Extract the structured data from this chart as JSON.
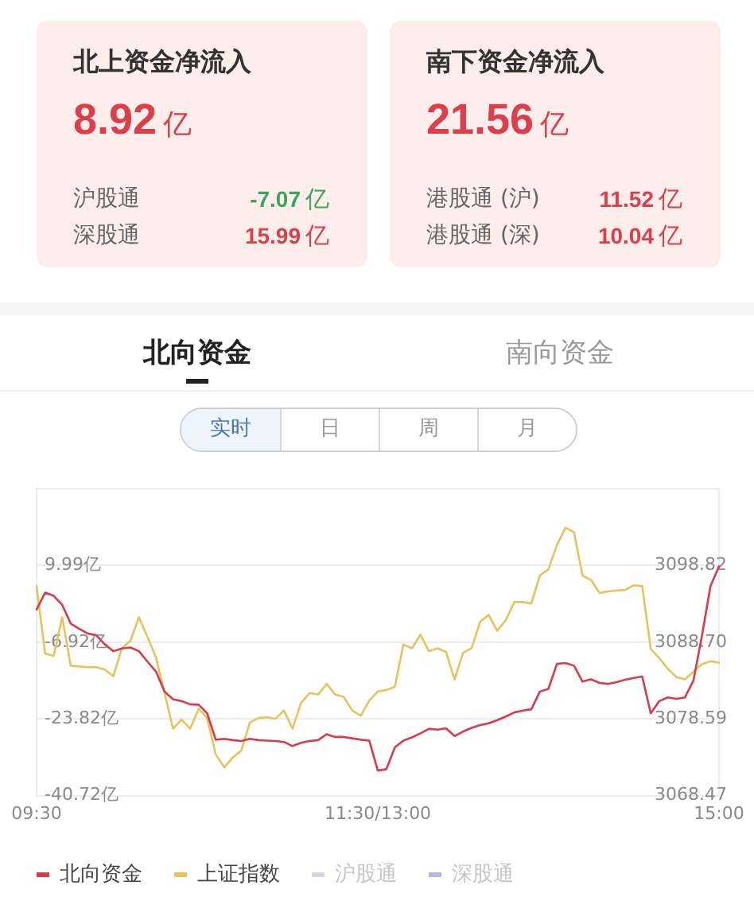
{
  "chart_data": [
    {
      "type": "other",
      "title": "北上资金净流入",
      "categories": [
        null,
        "沪股通",
        "深股通"
      ],
      "values": [
        8.92,
        -7.07,
        15.99
      ],
      "ylabel": "亿",
      "data_labels": true
    },
    {
      "type": "other",
      "title": "南下资金净流入",
      "categories": [
        null,
        "港股通 (沪)",
        "港股通 (深)"
      ],
      "values": [
        21.56,
        11.52,
        10.04
      ],
      "ylabel": "亿",
      "data_labels": true
    },
    {
      "type": "other",
      "annotations": [
        "北向资金",
        "南向资金"
      ]
    },
    {
      "type": "other",
      "annotations": [
        "实时",
        "日",
        "周",
        "月"
      ]
    },
    {
      "type": "line",
      "categories": [
        "09:30",
        null,
        null,
        null,
        null,
        null,
        null,
        null,
        null,
        null,
        null,
        null,
        null,
        null,
        null,
        null,
        null,
        null,
        null,
        null,
        null,
        null,
        null,
        null,
        null,
        null,
        null,
        null,
        null,
        null,
        null,
        null,
        null,
        null,
        null,
        null,
        null,
        null,
        null,
        null,
        "11:30/13:00",
        null,
        null,
        null,
        null,
        null,
        null,
        null,
        null,
        null,
        null,
        null,
        null,
        null,
        null,
        null,
        null,
        null,
        null,
        null,
        null,
        null,
        null,
        null,
        null,
        null,
        null,
        null,
        null,
        null,
        null,
        null,
        null,
        null,
        null,
        null,
        null,
        null,
        null,
        null,
        "15:00"
      ],
      "series": [
        {
          "name": "北向资金",
          "color": "#d63c4c",
          "values": [
            0.3,
            4.0,
            3.3,
            1.3,
            -2.8,
            -4.0,
            -5.0,
            -5.4,
            -7.4,
            -8.9,
            -8.3,
            -8.1,
            -8.9,
            -11.2,
            -13.4,
            -17.8,
            -19.5,
            -19.9,
            -20.6,
            -20.7,
            -22.6,
            -28.4,
            -28.2,
            -28.5,
            -28.7,
            -28.2,
            -28.5,
            -28.6,
            -28.7,
            -28.9,
            -29.8,
            -29.1,
            -28.7,
            -28.5,
            -27.2,
            -27.8,
            -27.8,
            -28.1,
            -28.4,
            -28.6,
            -35.2,
            -34.9,
            -30.1,
            -28.6,
            -27.9,
            -27.0,
            -26.0,
            -26.2,
            -25.9,
            -27.6,
            -26.6,
            -25.8,
            -25.2,
            -24.8,
            -24.1,
            -23.3,
            -22.4,
            -22.0,
            -21.7,
            -17.8,
            -17.2,
            -11.7,
            -11.5,
            -12.1,
            -15.6,
            -15.1,
            -15.9,
            -16.1,
            -15.7,
            -15.2,
            -14.8,
            -14.5,
            -22.6,
            -19.9,
            -19.1,
            -19.4,
            -19.1,
            -15.4,
            -5.5,
            5.4,
            9.8
          ]
        },
        {
          "name": "上证指数",
          "color": "#e6c35c",
          "axis": "y2",
          "values": [
            3096.1,
            3087.2,
            3086.9,
            3092.0,
            3085.6,
            3085.5,
            3085.4,
            3085.4,
            3085.1,
            3084.2,
            3087.9,
            3088.9,
            3092.0,
            3089.4,
            3086.7,
            3082.0,
            3077.3,
            3078.5,
            3077.3,
            3079.9,
            3078.7,
            3073.9,
            3072.2,
            3073.5,
            3074.4,
            3078.1,
            3078.7,
            3078.8,
            3078.6,
            3079.7,
            3077.3,
            3080.7,
            3082.0,
            3081.8,
            3083.2,
            3081.8,
            3081.5,
            3079.7,
            3079.0,
            3081.0,
            3082.2,
            3082.4,
            3082.8,
            3088.4,
            3087.9,
            3089.7,
            3087.5,
            3087.9,
            3087.4,
            3083.8,
            3087.3,
            3087.9,
            3091.4,
            3092.3,
            3090.2,
            3091.6,
            3094.0,
            3094.0,
            3093.8,
            3097.5,
            3098.3,
            3101.5,
            3103.8,
            3103.2,
            3097.5,
            3096.9,
            3095.2,
            3095.4,
            3095.5,
            3095.6,
            3096.2,
            3096.1,
            3087.8,
            3086.6,
            3085.2,
            3084.1,
            3083.8,
            3084.8,
            3085.8,
            3086.2,
            3086.0
          ]
        },
        {
          "name": "沪股通",
          "color": "#d6d3ea",
          "values": [
            null,
            null,
            null,
            null,
            null,
            null,
            null,
            null,
            null,
            null,
            null,
            null,
            null,
            null,
            null,
            null,
            null,
            null,
            null,
            null,
            null,
            null,
            null,
            null,
            null,
            null,
            null,
            null,
            null,
            null,
            null,
            null,
            null,
            null,
            null,
            null,
            null,
            null,
            null,
            null,
            null,
            null,
            null,
            null,
            null,
            null,
            null,
            null,
            null,
            null,
            null,
            null,
            null,
            null,
            null,
            null,
            null,
            null,
            null,
            null,
            null,
            null,
            null,
            null,
            null,
            null,
            null,
            null,
            null,
            null,
            null,
            null,
            null,
            null,
            null,
            null,
            null,
            null,
            null,
            null,
            null
          ]
        },
        {
          "name": "深股通",
          "color": "#b3b8dd",
          "values": [
            null,
            null,
            null,
            null,
            null,
            null,
            null,
            null,
            null,
            null,
            null,
            null,
            null,
            null,
            null,
            null,
            null,
            null,
            null,
            null,
            null,
            null,
            null,
            null,
            null,
            null,
            null,
            null,
            null,
            null,
            null,
            null,
            null,
            null,
            null,
            null,
            null,
            null,
            null,
            null,
            null,
            null,
            null,
            null,
            null,
            null,
            null,
            null,
            null,
            null,
            null,
            null,
            null,
            null,
            null,
            null,
            null,
            null,
            null,
            null,
            null,
            null,
            null,
            null,
            null,
            null,
            null,
            null,
            null,
            null,
            null,
            null,
            null,
            null,
            null,
            null,
            null,
            null,
            null,
            null,
            null
          ]
        }
      ],
      "ylim": [
        -40.72,
        26.89
      ],
      "yticks": [
        {
          "value": -40.72,
          "label": "-40.72亿"
        },
        {
          "value": -23.82,
          "label": "-23.82亿"
        },
        {
          "value": -6.92,
          "label": "-6.92亿"
        },
        {
          "value": 9.99,
          "label": "9.99亿"
        },
        {
          "value": 26.89,
          "label": null
        }
      ],
      "y2lim": [
        3068.47,
        3108.94
      ],
      "y2ticks": [
        3068.47,
        3078.59,
        {
          "value": 3088.7,
          "label": "3088.70"
        },
        3098.82
      ],
      "grid": "y",
      "legend": "bottom left"
    }
  ]
}
